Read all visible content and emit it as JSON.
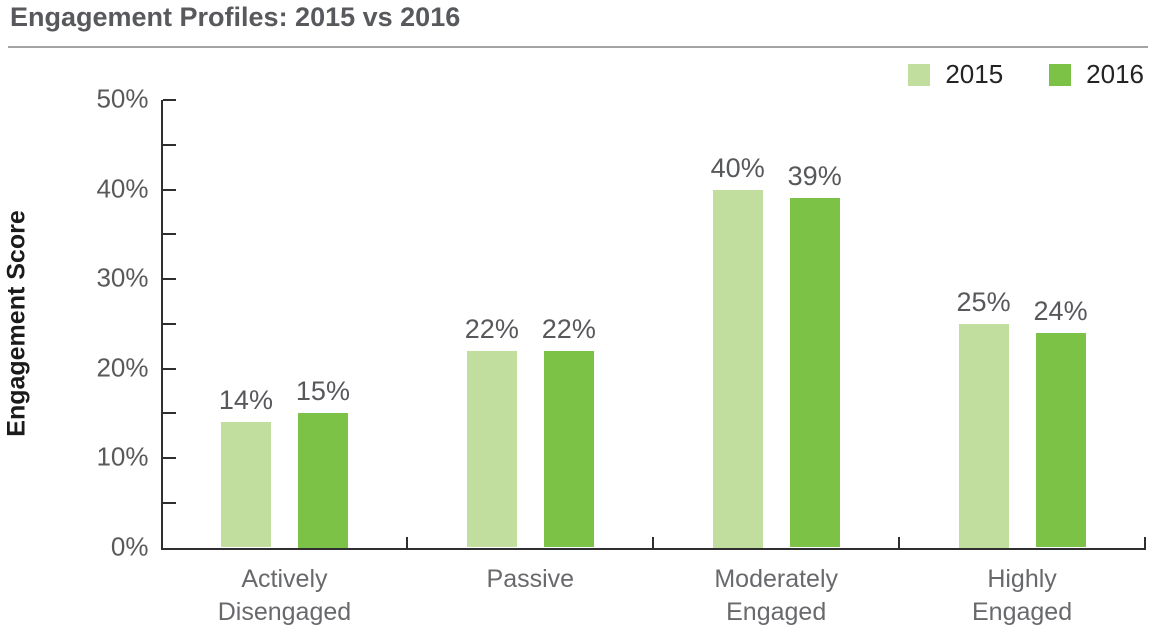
{
  "header": {
    "title": "Engagement Profiles: 2015 vs 2016"
  },
  "legend": {
    "items": [
      {
        "label": "2015",
        "color": "#c1de9f"
      },
      {
        "label": "2016",
        "color": "#7cc247"
      }
    ]
  },
  "chart_data": {
    "type": "bar",
    "title": "Engagement Profiles: 2015 vs 2016",
    "categories": [
      "Actively Disengaged",
      "Passive",
      "Moderately Engaged",
      "Highly Engaged"
    ],
    "series": [
      {
        "name": "2015",
        "color": "#c1de9f",
        "values": [
          14,
          22,
          40,
          25
        ]
      },
      {
        "name": "2016",
        "color": "#7cc247",
        "values": [
          15,
          22,
          39,
          24
        ]
      }
    ],
    "data_labels": [
      "14%",
      "15%",
      "22%",
      "22%",
      "40%",
      "39%",
      "25%",
      "24%"
    ],
    "xlabel": "",
    "ylabel": "Engagement Score",
    "ylim": [
      0,
      50
    ],
    "ytick_major_step": 10,
    "ytick_minor_step": 5,
    "ytick_labels": [
      "0%",
      "10%",
      "20%",
      "30%",
      "40%",
      "50%"
    ],
    "ytick_suffix": "%",
    "grid": false,
    "legend_position": "top-right",
    "bar_label_suffix": "%"
  },
  "colors": {
    "series_2015": "#c1de9f",
    "series_2016": "#7cc247",
    "title_text": "#58595c",
    "axis_line": "#2f2f31",
    "tick_label": "#58595b",
    "category_label": "#68696c",
    "data_label": "#57585b",
    "separator": "#a4a4a7"
  }
}
